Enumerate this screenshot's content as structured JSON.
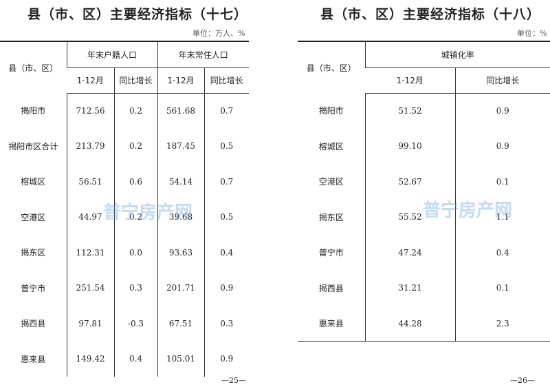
{
  "left": {
    "title": "县（市、区）主要经济指标（十七）",
    "unit": "单位：万人、%",
    "header": {
      "region": "县（市、区）",
      "group1": "年末户籍人口",
      "group2": "年末常住人口",
      "sub1": "1-12月",
      "sub2": "同比增长",
      "sub3": "1-12月",
      "sub4": "同比增长"
    },
    "rows": [
      [
        "揭阳市",
        "712.56",
        "0.2",
        "561.68",
        "0.7"
      ],
      [
        "揭阳市区合计",
        "213.79",
        "0.2",
        "187.45",
        "0.5"
      ],
      [
        "榕城区",
        "56.51",
        "0.6",
        "54.14",
        "0.7"
      ],
      [
        "空港区",
        "44.97",
        "0.2",
        "39.68",
        "0.5"
      ],
      [
        "揭东区",
        "112.31",
        "0.0",
        "93.63",
        "0.4"
      ],
      [
        "普宁市",
        "251.54",
        "0.3",
        "201.71",
        "0.9"
      ],
      [
        "揭西县",
        "97.81",
        "-0.3",
        "67.51",
        "0.3"
      ],
      [
        "惠来县",
        "149.42",
        "0.4",
        "105.01",
        "0.9"
      ]
    ],
    "page": "—25—"
  },
  "right": {
    "title": "县（市、区）主要经济指标（十八）",
    "unit": "单位：%",
    "header": {
      "region": "县（市、区）",
      "group1": "城镇化率",
      "sub1": "1-12月",
      "sub2": "同比增长"
    },
    "rows": [
      [
        "揭阳市",
        "51.52",
        "0.9"
      ],
      [
        "榕城区",
        "99.10",
        "0.9"
      ],
      [
        "空港区",
        "52.67",
        "0.1"
      ],
      [
        "揭东区",
        "55.52",
        "1.1"
      ],
      [
        "普宁市",
        "47.24",
        "0.4"
      ],
      [
        "揭西县",
        "31.21",
        "0.1"
      ],
      [
        "惠来县",
        "44.28",
        "2.3"
      ]
    ],
    "page": "—26—"
  },
  "watermark": "普宁房产网"
}
